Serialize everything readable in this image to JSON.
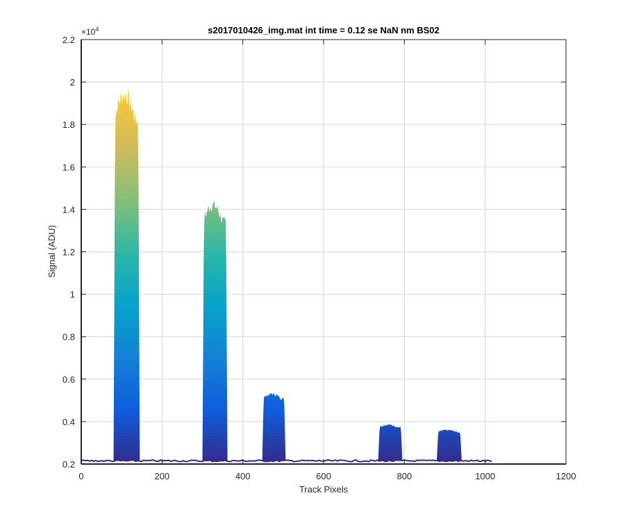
{
  "chart_data": {
    "type": "area",
    "title": "s2017010426_img.mat int time = 0.12 se  NaN nm BS02",
    "xlabel": "Track Pixels",
    "ylabel": "Signal (ADU)",
    "xlim": [
      0,
      1200
    ],
    "ylim": [
      2000,
      22000
    ],
    "x_ticks": [
      0,
      200,
      400,
      600,
      800,
      1000,
      1200
    ],
    "y_ticks": [
      2000,
      4000,
      6000,
      8000,
      10000,
      12000,
      14000,
      16000,
      18000,
      20000,
      22000
    ],
    "x_tick_labels": [
      "0",
      "200",
      "400",
      "600",
      "800",
      "1000",
      "1200"
    ],
    "y_tick_labels": [
      "0.2",
      "0.4",
      "0.6",
      "0.8",
      "1",
      "1.2",
      "1.4",
      "1.6",
      "1.8",
      "2",
      "2.2"
    ],
    "y_exponent_label": "×10",
    "y_exponent_power": "4",
    "grid": true,
    "colormap": "parula",
    "colormap_stops": [
      "#352a87",
      "#0f5cdd",
      "#1481d6",
      "#06a4ca",
      "#2eb7a4",
      "#87bf77",
      "#d1bb59",
      "#fec832",
      "#f9fb0e"
    ],
    "baseline": 2150,
    "data_range": [
      0,
      1020
    ],
    "peaks": [
      {
        "x_start": 80,
        "x_end": 145,
        "top_y": 19400
      },
      {
        "x_start": 300,
        "x_end": 362,
        "top_y": 14200
      },
      {
        "x_start": 448,
        "x_end": 506,
        "top_y": 5300
      },
      {
        "x_start": 735,
        "x_end": 795,
        "top_y": 3850
      },
      {
        "x_start": 880,
        "x_end": 942,
        "top_y": 3600
      }
    ]
  }
}
